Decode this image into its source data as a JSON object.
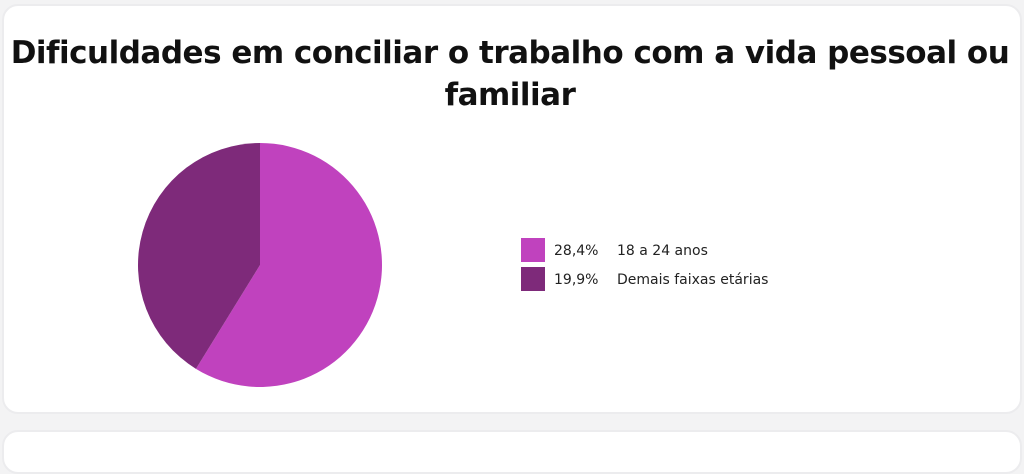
{
  "chart_data": {
    "type": "pie",
    "title": "Dificuldades em conciliar o trabalho com a vida pessoal ou familiar",
    "categories": [
      "18 a 24 anos",
      "Demais faixas etárias"
    ],
    "values": [
      28.4,
      19.9
    ],
    "value_labels": [
      "28,4%",
      "19,9%"
    ],
    "colors": [
      "#c042be",
      "#7e2a7a"
    ],
    "legend": "right"
  }
}
